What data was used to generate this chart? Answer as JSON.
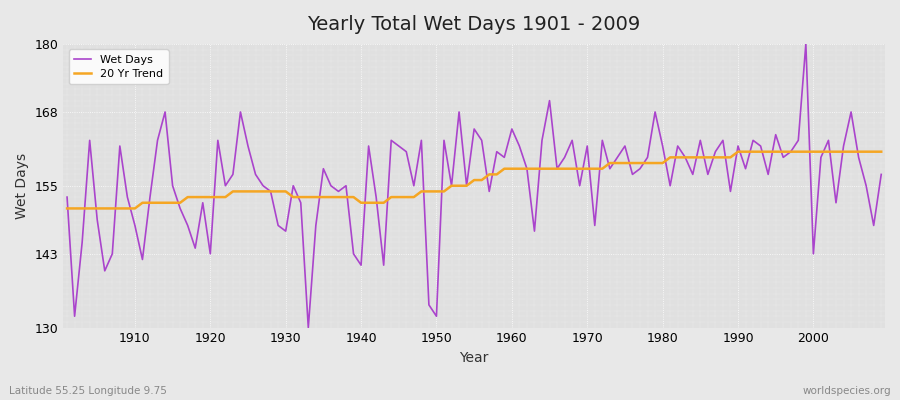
{
  "title": "Yearly Total Wet Days 1901 - 2009",
  "xlabel": "Year",
  "ylabel": "Wet Days",
  "subtitle": "Latitude 55.25 Longitude 9.75",
  "watermark": "worldspecies.org",
  "ylim": [
    130,
    180
  ],
  "yticks": [
    130,
    143,
    155,
    168,
    180
  ],
  "line_color": "#aa44cc",
  "trend_color": "#f5a623",
  "fig_background": "#e8e8e8",
  "plot_background": "#e0e0e0",
  "legend_labels": [
    "Wet Days",
    "20 Yr Trend"
  ],
  "years": [
    1901,
    1902,
    1903,
    1904,
    1905,
    1906,
    1907,
    1908,
    1909,
    1910,
    1911,
    1912,
    1913,
    1914,
    1915,
    1916,
    1917,
    1918,
    1919,
    1920,
    1921,
    1922,
    1923,
    1924,
    1925,
    1926,
    1927,
    1928,
    1929,
    1930,
    1931,
    1932,
    1933,
    1934,
    1935,
    1936,
    1937,
    1938,
    1939,
    1940,
    1941,
    1942,
    1943,
    1944,
    1945,
    1946,
    1947,
    1948,
    1949,
    1950,
    1951,
    1952,
    1953,
    1954,
    1955,
    1956,
    1957,
    1958,
    1959,
    1960,
    1961,
    1962,
    1963,
    1964,
    1965,
    1966,
    1967,
    1968,
    1969,
    1970,
    1971,
    1972,
    1973,
    1974,
    1975,
    1976,
    1977,
    1978,
    1979,
    1980,
    1981,
    1982,
    1983,
    1984,
    1985,
    1986,
    1987,
    1988,
    1989,
    1990,
    1991,
    1992,
    1993,
    1994,
    1995,
    1996,
    1997,
    1998,
    1999,
    2000,
    2001,
    2002,
    2003,
    2004,
    2005,
    2006,
    2007,
    2008,
    2009
  ],
  "wet_days": [
    153,
    132,
    145,
    163,
    149,
    140,
    143,
    162,
    153,
    148,
    142,
    153,
    163,
    168,
    155,
    151,
    148,
    144,
    152,
    143,
    163,
    155,
    157,
    168,
    162,
    157,
    155,
    154,
    148,
    147,
    155,
    152,
    130,
    148,
    158,
    155,
    154,
    155,
    143,
    141,
    162,
    153,
    141,
    163,
    162,
    161,
    155,
    163,
    134,
    132,
    163,
    155,
    168,
    155,
    165,
    163,
    154,
    161,
    160,
    165,
    162,
    158,
    147,
    163,
    170,
    158,
    160,
    163,
    155,
    162,
    148,
    163,
    158,
    160,
    162,
    157,
    158,
    160,
    168,
    162,
    155,
    162,
    160,
    157,
    163,
    157,
    161,
    163,
    154,
    162,
    158,
    163,
    162,
    157,
    164,
    160,
    161,
    163,
    180,
    143,
    160,
    163,
    152,
    162,
    168,
    160,
    155,
    148,
    157
  ],
  "trend": [
    151,
    151,
    151,
    151,
    151,
    151,
    151,
    151,
    151,
    151,
    152,
    152,
    152,
    152,
    152,
    152,
    153,
    153,
    153,
    153,
    153,
    153,
    154,
    154,
    154,
    154,
    154,
    154,
    154,
    154,
    153,
    153,
    153,
    153,
    153,
    153,
    153,
    153,
    153,
    152,
    152,
    152,
    152,
    153,
    153,
    153,
    153,
    154,
    154,
    154,
    154,
    155,
    155,
    155,
    156,
    156,
    157,
    157,
    158,
    158,
    158,
    158,
    158,
    158,
    158,
    158,
    158,
    158,
    158,
    158,
    158,
    158,
    159,
    159,
    159,
    159,
    159,
    159,
    159,
    159,
    160,
    160,
    160,
    160,
    160,
    160,
    160,
    160,
    160,
    161,
    161,
    161,
    161,
    161,
    161,
    161,
    161,
    161,
    161,
    161,
    161,
    161,
    161,
    161,
    161,
    161,
    161,
    161,
    161
  ]
}
